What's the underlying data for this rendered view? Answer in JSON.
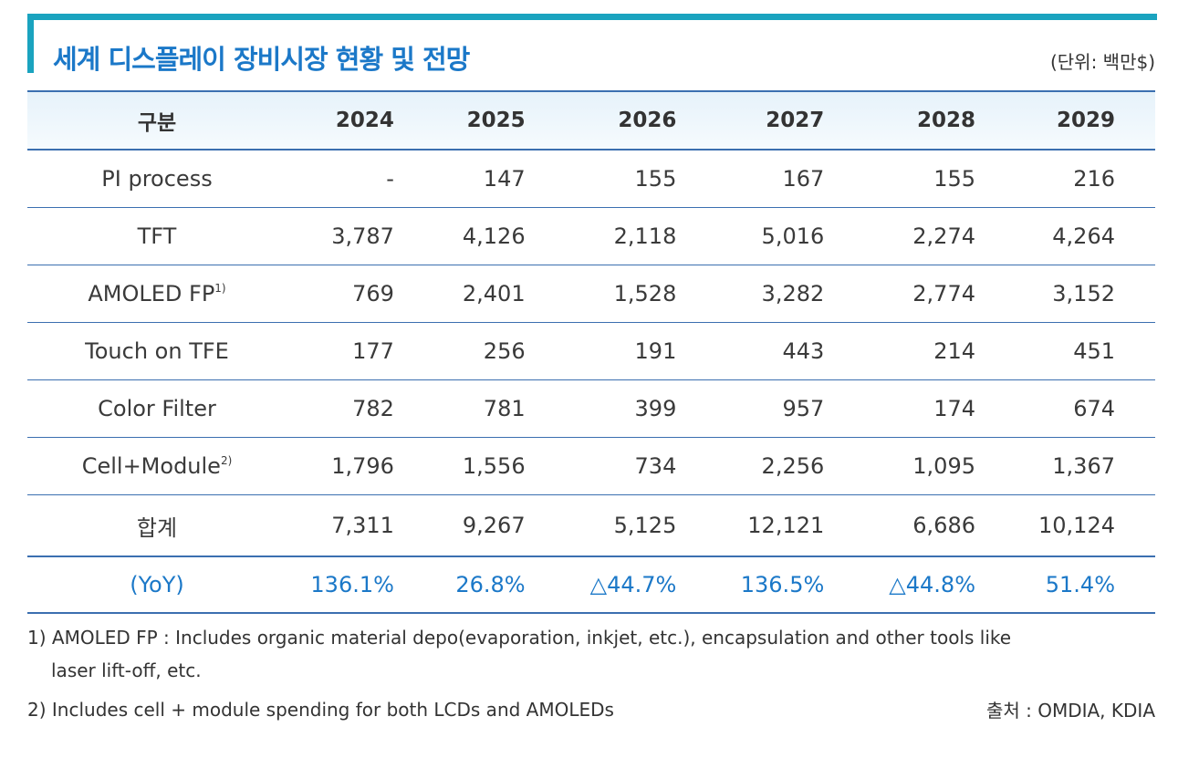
{
  "title": "세계 디스플레이 장비시장 현황 및 전망",
  "unit": "(단위: 백만$)",
  "table": {
    "header": {
      "label": "구분",
      "years": [
        "2024",
        "2025",
        "2026",
        "2027",
        "2028",
        "2029"
      ]
    },
    "rows": [
      {
        "label": "PI process",
        "sup": "",
        "values": [
          "-",
          "147",
          "155",
          "167",
          "155",
          "216"
        ]
      },
      {
        "label": "TFT",
        "sup": "",
        "values": [
          "3,787",
          "4,126",
          "2,118",
          "5,016",
          "2,274",
          "4,264"
        ]
      },
      {
        "label": "AMOLED FP",
        "sup": "1)",
        "values": [
          "769",
          "2,401",
          "1,528",
          "3,282",
          "2,774",
          "3,152"
        ]
      },
      {
        "label": "Touch on TFE",
        "sup": "",
        "values": [
          "177",
          "256",
          "191",
          "443",
          "214",
          "451"
        ]
      },
      {
        "label": "Color Filter",
        "sup": "",
        "values": [
          "782",
          "781",
          "399",
          "957",
          "174",
          "674"
        ]
      },
      {
        "label": "Cell+Module",
        "sup": "2)",
        "values": [
          "1,796",
          "1,556",
          "734",
          "2,256",
          "1,095",
          "1,367"
        ]
      }
    ],
    "total": {
      "label": "합계",
      "values": [
        "7,311",
        "9,267",
        "5,125",
        "12,121",
        "6,686",
        "10,124"
      ]
    },
    "yoy": {
      "label": "(YoY)",
      "values": [
        "136.1%",
        "26.8%",
        "△44.7%",
        "136.5%",
        "△44.8%",
        "51.4%"
      ]
    }
  },
  "footnotes": [
    "1) AMOLED FP : Includes organic material depo(evaporation, inkjet, etc.), encapsulation and other tools like",
    "laser lift-off, etc.",
    "2) Includes cell + module spending for both LCDs and AMOLEDs"
  ],
  "source": "출처 : OMDIA, KDIA",
  "colors": {
    "accent": "#1aa3bf",
    "title": "#1b78c8",
    "rule": "#3b6fb0"
  }
}
